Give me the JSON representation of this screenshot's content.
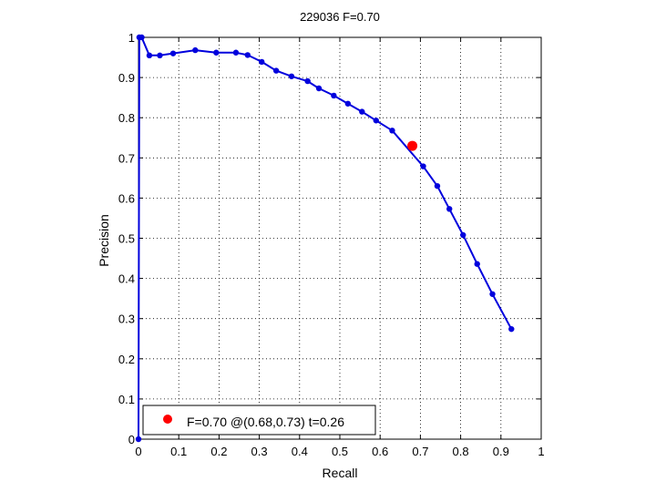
{
  "chart_data": {
    "type": "line",
    "title": "229036 F=0.70",
    "xlabel": "Recall",
    "ylabel": "Precision",
    "xlim": [
      0,
      1
    ],
    "ylim": [
      0,
      1
    ],
    "grid": true,
    "x_ticks": [
      0,
      0.1,
      0.2,
      0.3,
      0.4,
      0.5,
      0.6,
      0.7,
      0.8,
      0.9,
      1
    ],
    "y_ticks": [
      0,
      0.1,
      0.2,
      0.3,
      0.4,
      0.5,
      0.6,
      0.7,
      0.8,
      0.9,
      1
    ],
    "x_tick_labels": [
      "0",
      "0.1",
      "0.2",
      "0.3",
      "0.4",
      "0.5",
      "0.6",
      "0.7",
      "0.8",
      "0.9",
      "1"
    ],
    "y_tick_labels": [
      "0",
      "0.1",
      "0.2",
      "0.3",
      "0.4",
      "0.5",
      "0.6",
      "0.7",
      "0.8",
      "0.9",
      "1"
    ],
    "series": [
      {
        "color": "#0000dd",
        "x": [
          0.0,
          0.002,
          0.008,
          0.027,
          0.053,
          0.086,
          0.141,
          0.193,
          0.242,
          0.271,
          0.306,
          0.342,
          0.38,
          0.42,
          0.448,
          0.485,
          0.52,
          0.555,
          0.59,
          0.63,
          0.707,
          0.742,
          0.772,
          0.806,
          0.841,
          0.879,
          0.926
        ],
        "y": [
          0.0,
          1.0,
          1.0,
          0.955,
          0.955,
          0.96,
          0.968,
          0.962,
          0.962,
          0.956,
          0.939,
          0.917,
          0.903,
          0.891,
          0.873,
          0.855,
          0.835,
          0.815,
          0.793,
          0.768,
          0.679,
          0.63,
          0.573,
          0.508,
          0.436,
          0.361,
          0.274
        ]
      }
    ],
    "best_point": {
      "x": 0.68,
      "y": 0.73,
      "color": "#ff0000"
    },
    "legend": {
      "position": "bottom-left",
      "label": "F=0.70 @(0.68,0.73) t=0.26"
    }
  }
}
